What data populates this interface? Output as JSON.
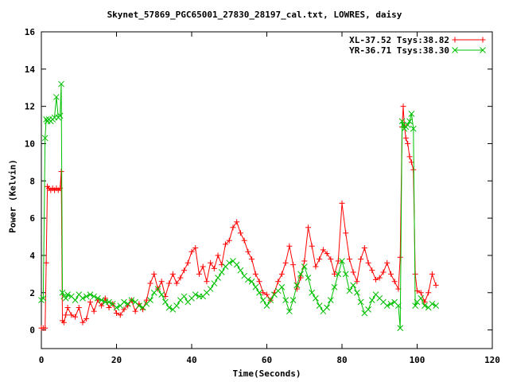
{
  "chart_data": {
    "type": "line",
    "title": "Skynet_57869_PGC65001_27830_28197_cal.txt, LOWRES, daisy",
    "xlabel": "Time(Seconds)",
    "ylabel": "Power (Kelvin)",
    "xlim": [
      0,
      120
    ],
    "ylim": [
      -1,
      16
    ],
    "xticks": [
      "0",
      "20",
      "40",
      "60",
      "80",
      "100",
      "120"
    ],
    "yticks": [
      "0",
      "2",
      "4",
      "6",
      "8",
      "10",
      "12",
      "14",
      "16"
    ],
    "grid": false,
    "legend_position": "top-right",
    "series": [
      {
        "name": "XL-37.52 Tsys:38.82",
        "color": "#ff0000",
        "marker": "plus",
        "x": [
          0,
          0.5,
          1,
          1.3,
          1.6,
          2,
          2.5,
          3,
          3.5,
          4,
          4.5,
          5,
          5.3,
          5.6,
          6,
          6.5,
          7,
          8,
          9,
          10,
          11,
          12,
          13,
          14,
          15,
          16,
          17,
          18,
          19,
          20,
          21,
          22,
          23,
          24,
          25,
          26,
          27,
          28,
          29,
          30,
          31,
          32,
          33,
          34,
          35,
          36,
          37,
          38,
          39,
          40,
          41,
          42,
          43,
          44,
          45,
          46,
          47,
          48,
          49,
          50,
          51,
          52,
          53,
          54,
          55,
          56,
          57,
          58,
          59,
          60,
          61,
          62,
          63,
          64,
          65,
          66,
          67,
          68,
          69,
          70,
          71,
          72,
          73,
          74,
          75,
          76,
          77,
          78,
          79,
          80,
          81,
          82,
          83,
          84,
          85,
          86,
          87,
          88,
          89,
          90,
          91,
          92,
          93,
          94,
          95,
          95.5,
          96,
          96.3,
          96.6,
          97,
          97.5,
          98,
          98.5,
          99,
          99.5,
          100,
          101,
          102,
          103,
          104,
          105
        ],
        "y": [
          0.1,
          0.1,
          0.1,
          3.6,
          7.7,
          7.6,
          7.5,
          7.6,
          7.5,
          7.6,
          7.5,
          7.6,
          8.5,
          0.5,
          0.4,
          0.8,
          1.2,
          0.8,
          0.7,
          1.2,
          0.4,
          0.6,
          1.5,
          1.0,
          1.6,
          1.3,
          1.7,
          1.2,
          1.4,
          0.9,
          0.8,
          1.1,
          1.3,
          1.6,
          1.0,
          1.4,
          1.1,
          1.6,
          2.5,
          3.0,
          2.2,
          2.6,
          1.8,
          2.5,
          3.0,
          2.5,
          2.8,
          3.2,
          3.6,
          4.2,
          4.4,
          3.0,
          3.4,
          2.6,
          3.6,
          3.3,
          4.0,
          3.5,
          4.6,
          4.8,
          5.5,
          5.8,
          5.2,
          4.8,
          4.2,
          3.8,
          3.0,
          2.6,
          2.0,
          1.9,
          1.6,
          2.0,
          2.6,
          3.0,
          3.6,
          4.5,
          3.5,
          2.2,
          2.8,
          3.7,
          5.5,
          4.5,
          3.4,
          3.8,
          4.3,
          4.1,
          3.8,
          3.0,
          3.7,
          6.8,
          5.2,
          3.8,
          3.1,
          2.6,
          3.8,
          4.4,
          3.6,
          3.2,
          2.7,
          2.8,
          3.1,
          3.6,
          3.0,
          2.6,
          2.2,
          3.9,
          10.9,
          12.0,
          11.0,
          10.3,
          10.0,
          9.3,
          9.0,
          8.6,
          3.0,
          2.1,
          2.0,
          1.5,
          2.0,
          3.0,
          2.4
        ]
      },
      {
        "name": "YR-36.71 Tsys:38.30",
        "color": "#00c000",
        "marker": "cross",
        "x": [
          0,
          0.5,
          1,
          1.3,
          1.6,
          2,
          2.5,
          3,
          3.5,
          4,
          4.5,
          5,
          5.3,
          5.6,
          6,
          6.5,
          7,
          8,
          9,
          10,
          11,
          12,
          13,
          14,
          15,
          16,
          17,
          18,
          19,
          20,
          21,
          22,
          23,
          24,
          25,
          26,
          27,
          28,
          29,
          30,
          31,
          32,
          33,
          34,
          35,
          36,
          37,
          38,
          39,
          40,
          41,
          42,
          43,
          44,
          45,
          46,
          47,
          48,
          49,
          50,
          51,
          52,
          53,
          54,
          55,
          56,
          57,
          58,
          59,
          60,
          61,
          62,
          63,
          64,
          65,
          66,
          67,
          68,
          69,
          70,
          71,
          72,
          73,
          74,
          75,
          76,
          77,
          78,
          79,
          80,
          81,
          82,
          83,
          84,
          85,
          86,
          87,
          88,
          89,
          90,
          91,
          92,
          93,
          94,
          95,
          95.5,
          96,
          96.3,
          96.6,
          97,
          97.5,
          98,
          98.5,
          99,
          99.5,
          100,
          101,
          102,
          103,
          104,
          105
        ],
        "y": [
          1.6,
          1.7,
          10.3,
          11.3,
          11.2,
          11.3,
          11.2,
          11.3,
          11.4,
          12.5,
          11.4,
          11.5,
          13.2,
          2.0,
          1.8,
          1.7,
          1.9,
          1.8,
          1.6,
          1.9,
          1.7,
          1.8,
          1.9,
          1.8,
          1.7,
          1.6,
          1.5,
          1.5,
          1.4,
          1.2,
          1.3,
          1.5,
          1.4,
          1.6,
          1.5,
          1.3,
          1.2,
          1.4,
          1.6,
          2.0,
          2.2,
          1.9,
          1.5,
          1.2,
          1.1,
          1.3,
          1.6,
          1.8,
          1.5,
          1.7,
          1.9,
          1.8,
          1.8,
          2.0,
          2.2,
          2.5,
          2.8,
          3.1,
          3.4,
          3.6,
          3.7,
          3.5,
          3.2,
          2.9,
          2.7,
          2.6,
          2.3,
          2.0,
          1.6,
          1.3,
          1.6,
          1.9,
          2.1,
          2.3,
          1.6,
          1.0,
          1.6,
          2.4,
          3.0,
          3.4,
          2.8,
          2.0,
          1.7,
          1.3,
          1.0,
          1.2,
          1.6,
          2.3,
          3.0,
          3.7,
          3.0,
          2.1,
          2.4,
          2.0,
          1.5,
          0.9,
          1.1,
          1.6,
          1.9,
          1.7,
          1.5,
          1.3,
          1.4,
          1.5,
          1.3,
          0.1,
          11.2,
          11.0,
          10.8,
          10.9,
          11.0,
          11.2,
          11.6,
          10.8,
          1.3,
          1.5,
          1.7,
          1.3,
          1.2,
          1.4,
          1.3
        ]
      }
    ]
  }
}
